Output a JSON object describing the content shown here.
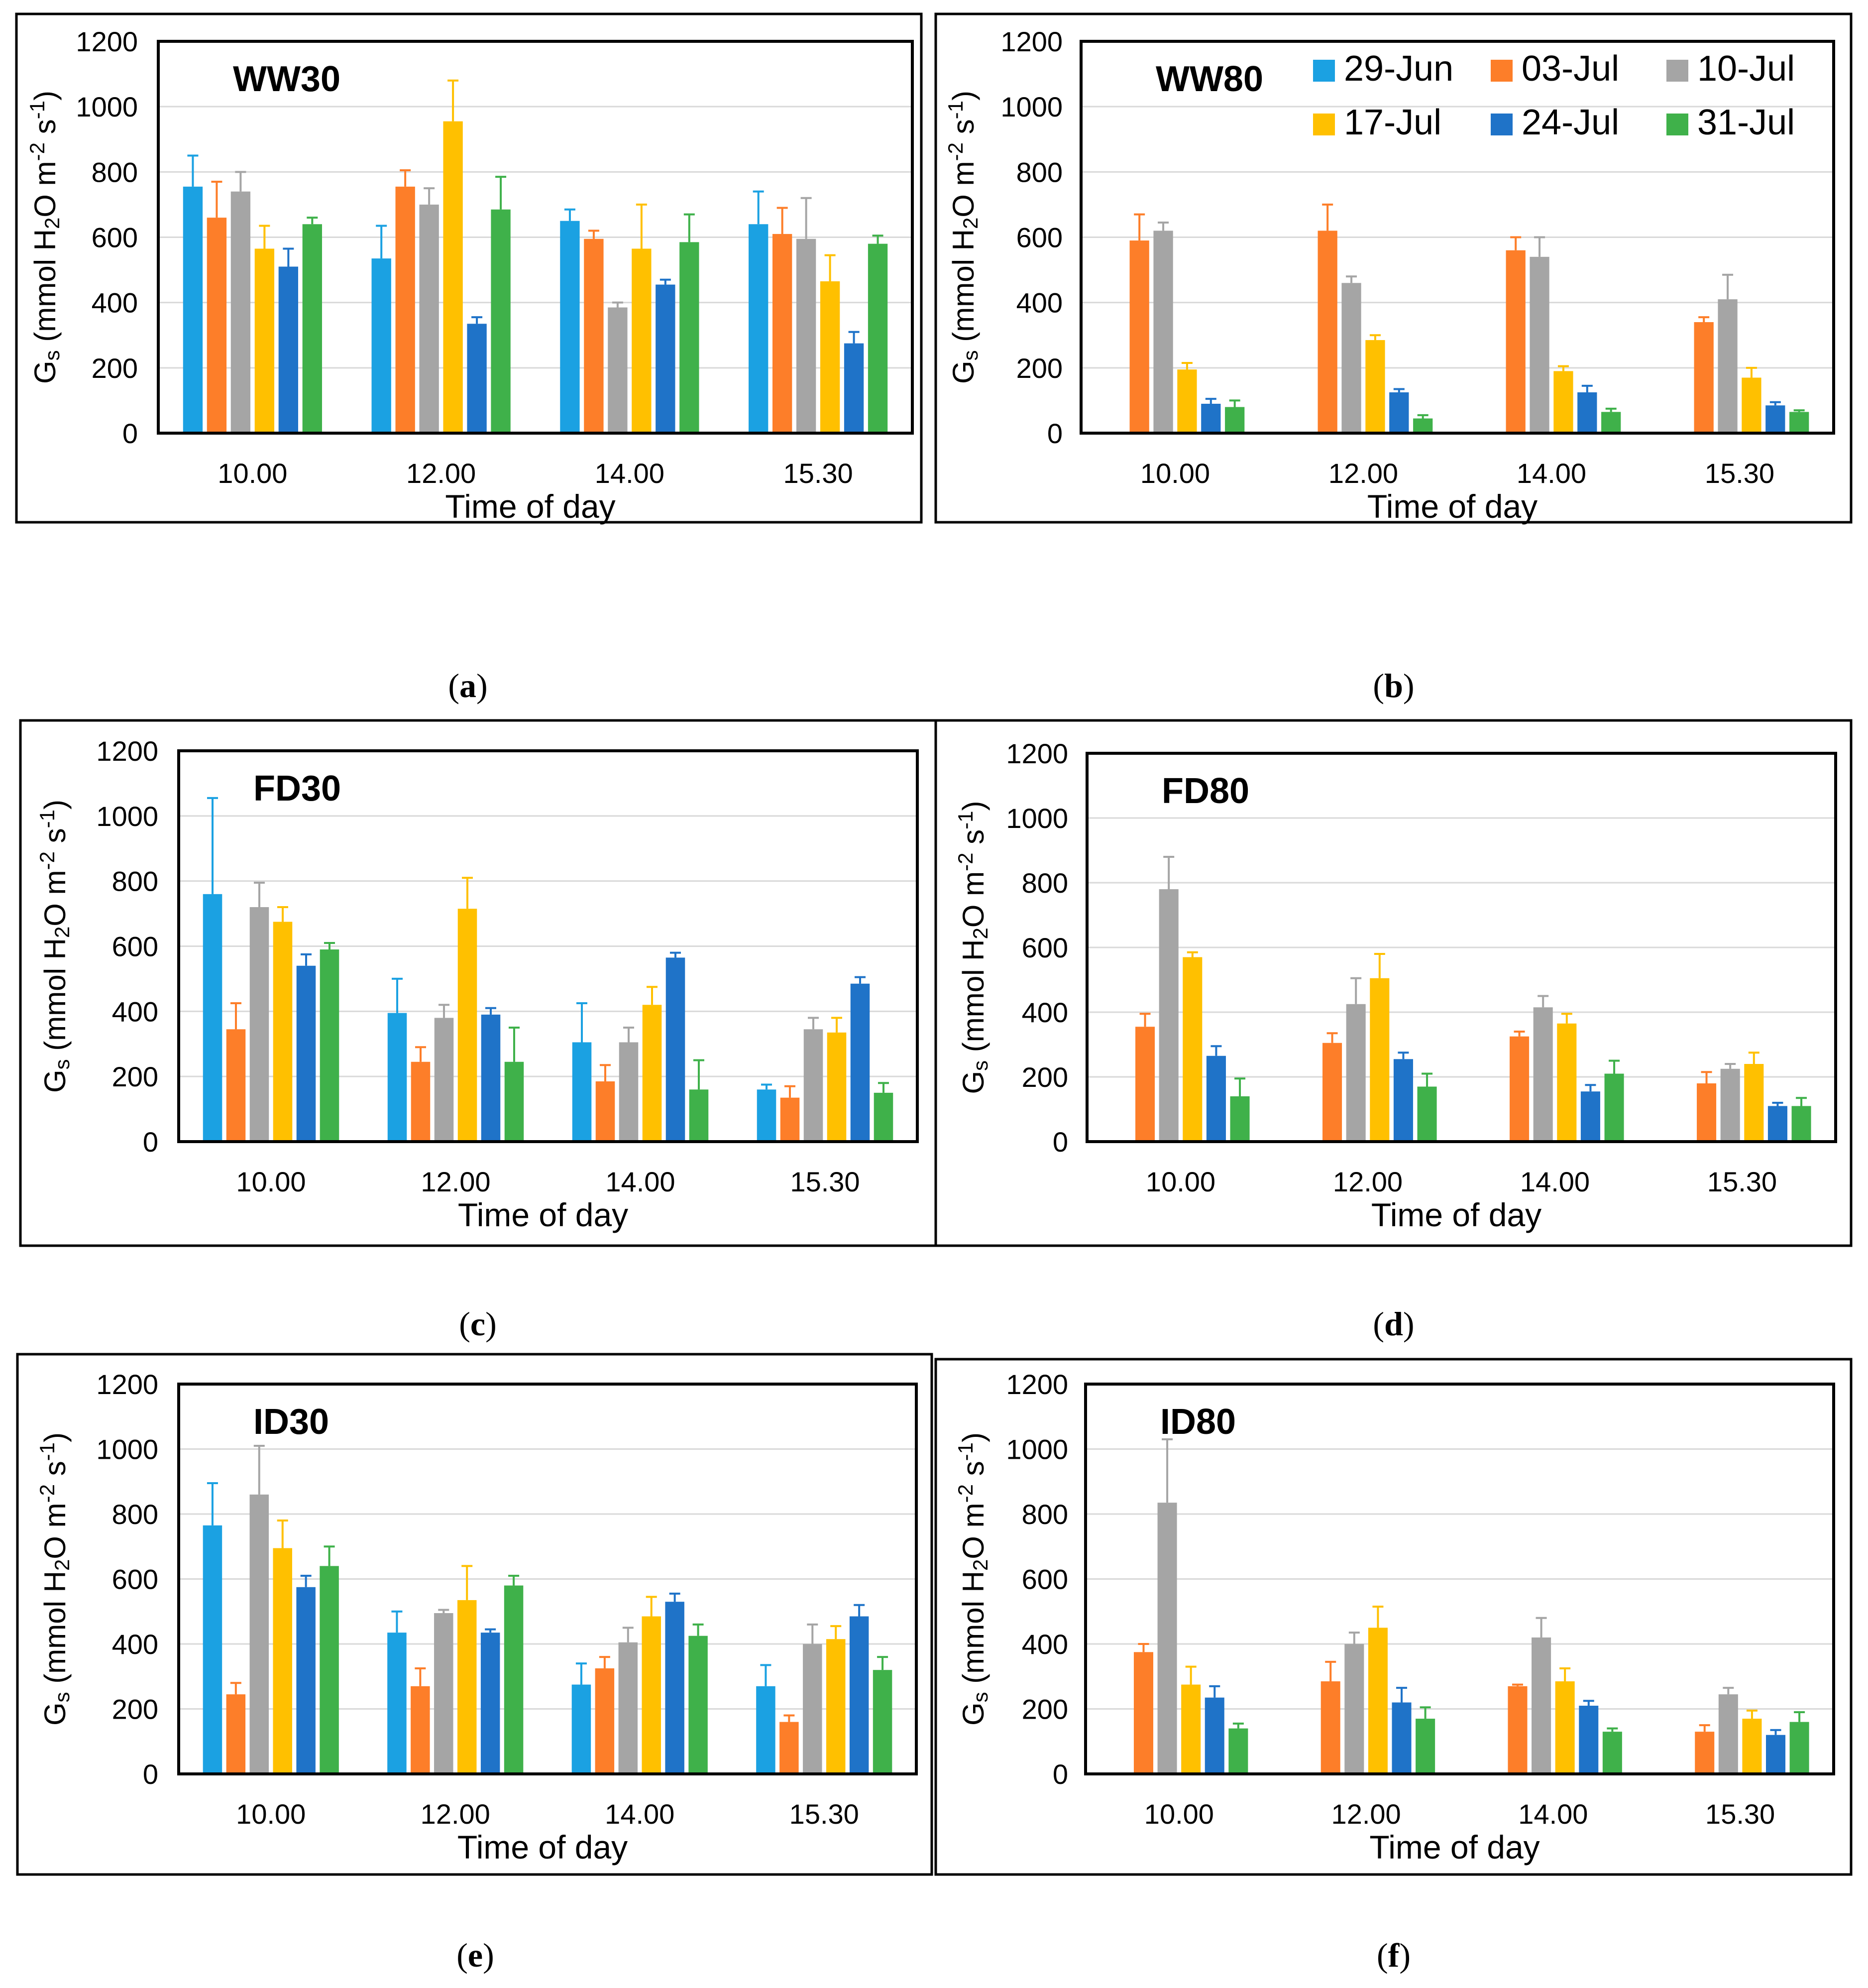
{
  "legend": [
    {
      "label": "29-Jun",
      "color": "#1ba1e2"
    },
    {
      "label": "03-Jul",
      "color": "#fd7e29"
    },
    {
      "label": "10-Jul",
      "color": "#a5a5a5"
    },
    {
      "label": "17-Jul",
      "color": "#ffc000"
    },
    {
      "label": "24-Jul",
      "color": "#1f73c8"
    },
    {
      "label": "31-Jul",
      "color": "#3fb14a"
    }
  ],
  "chart_data": [
    {
      "type": "bar",
      "panel": "a",
      "caption_letter": "a",
      "title": "WW30",
      "categories": [
        "10.00",
        "12.00",
        "14.00",
        "15.30"
      ],
      "xlabel": "Time of day",
      "ylabel": "Gs (mmol H2O m-2 s-1)",
      "ylim": [
        0,
        1200
      ],
      "yticks": [
        "0",
        "200",
        "400",
        "600",
        "800",
        "1000",
        "1200"
      ],
      "grid": true,
      "series": [
        {
          "name": "29-Jun",
          "values": [
            755,
            535,
            650,
            640
          ],
          "errors": [
            95,
            100,
            35,
            100
          ]
        },
        {
          "name": "03-Jul",
          "values": [
            660,
            755,
            595,
            610
          ],
          "errors": [
            110,
            50,
            25,
            80
          ]
        },
        {
          "name": "10-Jul",
          "values": [
            740,
            700,
            385,
            595
          ],
          "errors": [
            60,
            50,
            15,
            125
          ]
        },
        {
          "name": "17-Jul",
          "values": [
            565,
            955,
            565,
            465
          ],
          "errors": [
            70,
            125,
            135,
            80
          ]
        },
        {
          "name": "24-Jul",
          "values": [
            510,
            335,
            455,
            275
          ],
          "errors": [
            55,
            20,
            15,
            35
          ]
        },
        {
          "name": "31-Jul",
          "values": [
            640,
            685,
            585,
            580
          ],
          "errors": [
            20,
            100,
            85,
            25
          ]
        }
      ]
    },
    {
      "type": "bar",
      "panel": "b",
      "caption_letter": "b",
      "title": "WW80",
      "categories": [
        "10.00",
        "12.00",
        "14.00",
        "15.30"
      ],
      "xlabel": "Time of day",
      "ylabel": "Gs (mmol H2O m-2 s-1)",
      "ylim": [
        0,
        1200
      ],
      "yticks": [
        "0",
        "200",
        "400",
        "600",
        "800",
        "1000",
        "1200"
      ],
      "grid": true,
      "series": [
        {
          "name": "29-Jun",
          "values": [
            0,
            0,
            0,
            0
          ],
          "errors": [
            0,
            0,
            0,
            0
          ]
        },
        {
          "name": "03-Jul",
          "values": [
            590,
            620,
            560,
            340
          ],
          "errors": [
            80,
            80,
            40,
            15
          ]
        },
        {
          "name": "10-Jul",
          "values": [
            620,
            460,
            540,
            410
          ],
          "errors": [
            25,
            20,
            60,
            75
          ]
        },
        {
          "name": "17-Jul",
          "values": [
            195,
            285,
            190,
            170
          ],
          "errors": [
            20,
            15,
            15,
            30
          ]
        },
        {
          "name": "24-Jul",
          "values": [
            90,
            125,
            125,
            85
          ],
          "errors": [
            15,
            10,
            20,
            10
          ]
        },
        {
          "name": "31-Jul",
          "values": [
            80,
            45,
            65,
            65
          ],
          "errors": [
            20,
            10,
            10,
            5
          ]
        }
      ]
    },
    {
      "type": "bar",
      "panel": "c",
      "caption_letter": "c",
      "title": "FD30",
      "categories": [
        "10.00",
        "12.00",
        "14.00",
        "15.30"
      ],
      "xlabel": "Time of day",
      "ylabel": "Gs (mmol H2O m-2 s-1)",
      "ylim": [
        0,
        1200
      ],
      "yticks": [
        "0",
        "200",
        "400",
        "600",
        "800",
        "1000",
        "1200"
      ],
      "grid": true,
      "series": [
        {
          "name": "29-Jun",
          "values": [
            760,
            395,
            305,
            160
          ],
          "errors": [
            295,
            105,
            120,
            15
          ]
        },
        {
          "name": "03-Jul",
          "values": [
            345,
            245,
            185,
            135
          ],
          "errors": [
            80,
            45,
            50,
            35
          ]
        },
        {
          "name": "10-Jul",
          "values": [
            720,
            380,
            305,
            345
          ],
          "errors": [
            75,
            40,
            45,
            35
          ]
        },
        {
          "name": "17-Jul",
          "values": [
            675,
            715,
            420,
            335
          ],
          "errors": [
            45,
            95,
            55,
            45
          ]
        },
        {
          "name": "24-Jul",
          "values": [
            540,
            390,
            565,
            485
          ],
          "errors": [
            35,
            20,
            15,
            20
          ]
        },
        {
          "name": "31-Jul",
          "values": [
            590,
            245,
            160,
            150
          ],
          "errors": [
            20,
            105,
            90,
            30
          ]
        }
      ]
    },
    {
      "type": "bar",
      "panel": "d",
      "caption_letter": "d",
      "title": "FD80",
      "categories": [
        "10.00",
        "12.00",
        "14.00",
        "15.30"
      ],
      "xlabel": "Time of day",
      "ylabel": "Gs (mmol H2O m-2 s-1)",
      "ylim": [
        0,
        1200
      ],
      "yticks": [
        "0",
        "200",
        "400",
        "600",
        "800",
        "1000",
        "1200"
      ],
      "grid": true,
      "series": [
        {
          "name": "29-Jun",
          "values": [
            0,
            0,
            0,
            0
          ],
          "errors": [
            0,
            0,
            0,
            0
          ]
        },
        {
          "name": "03-Jul",
          "values": [
            355,
            305,
            325,
            180
          ],
          "errors": [
            40,
            30,
            15,
            35
          ]
        },
        {
          "name": "10-Jul",
          "values": [
            780,
            425,
            415,
            225
          ],
          "errors": [
            100,
            80,
            35,
            15
          ]
        },
        {
          "name": "17-Jul",
          "values": [
            570,
            505,
            365,
            240
          ],
          "errors": [
            15,
            75,
            30,
            35
          ]
        },
        {
          "name": "24-Jul",
          "values": [
            265,
            255,
            155,
            110
          ],
          "errors": [
            30,
            20,
            20,
            10
          ]
        },
        {
          "name": "31-Jul",
          "values": [
            140,
            170,
            210,
            110
          ],
          "errors": [
            55,
            40,
            40,
            25
          ]
        }
      ]
    },
    {
      "type": "bar",
      "panel": "e",
      "caption_letter": "e",
      "title": "ID30",
      "categories": [
        "10.00",
        "12.00",
        "14.00",
        "15.30"
      ],
      "xlabel": "Time of day",
      "ylabel": "Gs (mmol H2O m-2 s-1)",
      "ylim": [
        0,
        1200
      ],
      "yticks": [
        "0",
        "200",
        "400",
        "600",
        "800",
        "1000",
        "1200"
      ],
      "grid": true,
      "series": [
        {
          "name": "29-Jun",
          "values": [
            765,
            435,
            275,
            270
          ],
          "errors": [
            130,
            65,
            65,
            65
          ]
        },
        {
          "name": "03-Jul",
          "values": [
            245,
            270,
            325,
            160
          ],
          "errors": [
            35,
            55,
            35,
            20
          ]
        },
        {
          "name": "10-Jul",
          "values": [
            860,
            495,
            405,
            400
          ],
          "errors": [
            150,
            10,
            45,
            60
          ]
        },
        {
          "name": "17-Jul",
          "values": [
            695,
            535,
            485,
            415
          ],
          "errors": [
            85,
            105,
            60,
            40
          ]
        },
        {
          "name": "24-Jul",
          "values": [
            575,
            435,
            530,
            485
          ],
          "errors": [
            35,
            10,
            25,
            35
          ]
        },
        {
          "name": "31-Jul",
          "values": [
            640,
            580,
            425,
            320
          ],
          "errors": [
            60,
            30,
            35,
            40
          ]
        }
      ]
    },
    {
      "type": "bar",
      "panel": "f",
      "caption_letter": "f",
      "title": "ID80",
      "categories": [
        "10.00",
        "12.00",
        "14.00",
        "15.30"
      ],
      "xlabel": "Time of day",
      "ylabel": "Gs (mmol H2O m-2 s-1)",
      "ylim": [
        0,
        1200
      ],
      "yticks": [
        "0",
        "200",
        "400",
        "600",
        "800",
        "1000",
        "1200"
      ],
      "grid": true,
      "series": [
        {
          "name": "29-Jun",
          "values": [
            0,
            0,
            0,
            0
          ],
          "errors": [
            0,
            0,
            0,
            0
          ]
        },
        {
          "name": "03-Jul",
          "values": [
            375,
            285,
            270,
            130
          ],
          "errors": [
            25,
            60,
            5,
            20
          ]
        },
        {
          "name": "10-Jul",
          "values": [
            835,
            400,
            420,
            245
          ],
          "errors": [
            195,
            35,
            60,
            20
          ]
        },
        {
          "name": "17-Jul",
          "values": [
            275,
            450,
            285,
            170
          ],
          "errors": [
            55,
            65,
            40,
            25
          ]
        },
        {
          "name": "24-Jul",
          "values": [
            235,
            220,
            210,
            120
          ],
          "errors": [
            35,
            45,
            15,
            15
          ]
        },
        {
          "name": "31-Jul",
          "values": [
            140,
            170,
            130,
            160
          ],
          "errors": [
            15,
            35,
            10,
            30
          ]
        }
      ]
    }
  ]
}
